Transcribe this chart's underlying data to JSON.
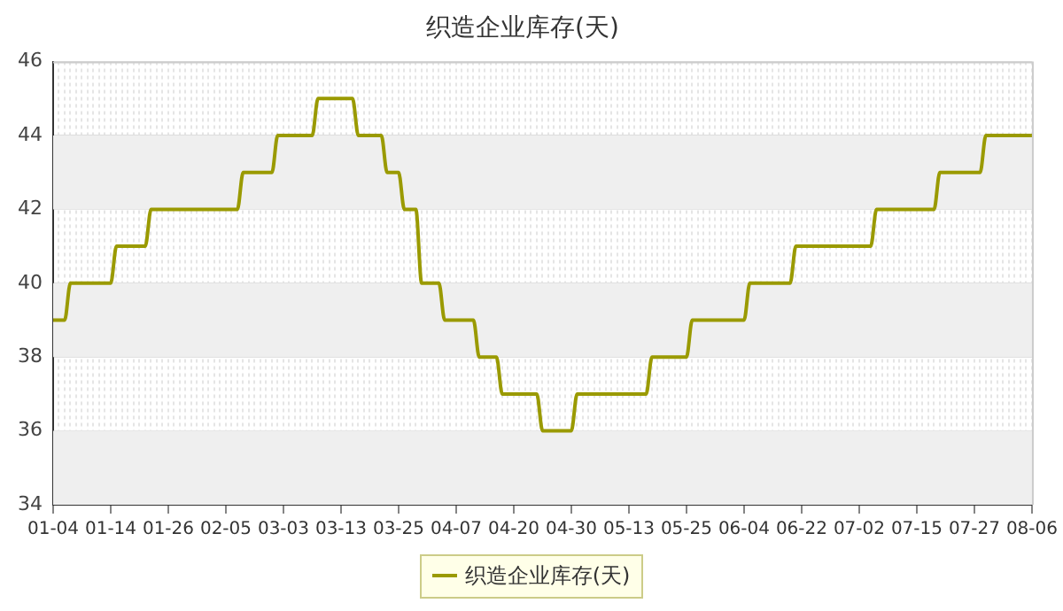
{
  "chart_data": {
    "type": "line",
    "title": "织造企业库存(天)",
    "categories": [
      "01-04",
      null,
      null,
      null,
      null,
      null,
      null,
      null,
      null,
      null,
      "01-14",
      null,
      null,
      null,
      null,
      null,
      null,
      null,
      null,
      null,
      "01-26",
      null,
      null,
      null,
      null,
      null,
      null,
      null,
      null,
      null,
      "02-05",
      null,
      null,
      null,
      null,
      null,
      null,
      null,
      null,
      null,
      "03-03",
      null,
      null,
      null,
      null,
      null,
      null,
      null,
      null,
      null,
      "03-13",
      null,
      null,
      null,
      null,
      null,
      null,
      null,
      null,
      null,
      "03-25",
      null,
      null,
      null,
      null,
      null,
      null,
      null,
      null,
      null,
      "04-07",
      null,
      null,
      null,
      null,
      null,
      null,
      null,
      null,
      null,
      "04-20",
      null,
      null,
      null,
      null,
      null,
      null,
      null,
      null,
      null,
      "04-30",
      null,
      null,
      null,
      null,
      null,
      null,
      null,
      null,
      null,
      "05-13",
      null,
      null,
      null,
      null,
      null,
      null,
      null,
      null,
      null,
      "05-25",
      null,
      null,
      null,
      null,
      null,
      null,
      null,
      null,
      null,
      "06-04",
      null,
      null,
      null,
      null,
      null,
      null,
      null,
      null,
      null,
      "06-22",
      null,
      null,
      null,
      null,
      null,
      null,
      null,
      null,
      null,
      "07-02",
      null,
      null,
      null,
      null,
      null,
      null,
      null,
      null,
      null,
      "07-15",
      null,
      null,
      null,
      null,
      null,
      null,
      null,
      null,
      null,
      "07-27",
      null,
      null,
      null,
      null,
      null,
      null,
      null,
      null,
      null,
      "08-06"
    ],
    "series": [
      {
        "name": "织造企业库存(天)",
        "color": "#9a9a00",
        "values": [
          39,
          39,
          39,
          40,
          40,
          40,
          40,
          40,
          40,
          40,
          40,
          41,
          41,
          41,
          41,
          41,
          41,
          42,
          42,
          42,
          42,
          42,
          42,
          42,
          42,
          42,
          42,
          42,
          42,
          42,
          42,
          42,
          42,
          43,
          43,
          43,
          43,
          43,
          43,
          44,
          44,
          44,
          44,
          44,
          44,
          44,
          45,
          45,
          45,
          45,
          45,
          45,
          45,
          44,
          44,
          44,
          44,
          44,
          43,
          43,
          43,
          42,
          42,
          42,
          40,
          40,
          40,
          40,
          39,
          39,
          39,
          39,
          39,
          39,
          38,
          38,
          38,
          38,
          37,
          37,
          37,
          37,
          37,
          37,
          37,
          36,
          36,
          36,
          36,
          36,
          36,
          37,
          37,
          37,
          37,
          37,
          37,
          37,
          37,
          37,
          37,
          37,
          37,
          37,
          38,
          38,
          38,
          38,
          38,
          38,
          38,
          39,
          39,
          39,
          39,
          39,
          39,
          39,
          39,
          39,
          39,
          40,
          40,
          40,
          40,
          40,
          40,
          40,
          40,
          41,
          41,
          41,
          41,
          41,
          41,
          41,
          41,
          41,
          41,
          41,
          41,
          41,
          41,
          42,
          42,
          42,
          42,
          42,
          42,
          42,
          42,
          42,
          42,
          42,
          43,
          43,
          43,
          43,
          43,
          43,
          43,
          43,
          44,
          44,
          44,
          44,
          44,
          44,
          44,
          44,
          44
        ]
      }
    ],
    "ylim": [
      34,
      46
    ],
    "yticks": [
      34,
      36,
      38,
      40,
      42,
      44,
      46
    ],
    "bands": [
      {
        "axis": "y",
        "from": 34,
        "to": 36,
        "color": "#efefef"
      },
      {
        "axis": "y",
        "from": 38,
        "to": 40,
        "color": "#efefef"
      },
      {
        "axis": "y",
        "from": 42,
        "to": 44,
        "color": "#efefef"
      }
    ],
    "grid": true,
    "legend": "bottom",
    "marker": "none",
    "line_style": "solid"
  }
}
